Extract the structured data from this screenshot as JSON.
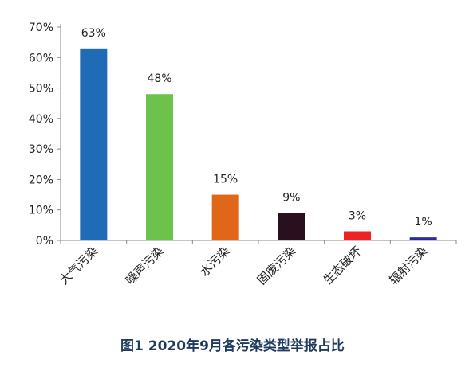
{
  "caption": "图1 2020年9月各污染类型举报占比",
  "chart_data": {
    "type": "bar",
    "title": "",
    "xlabel": "",
    "ylabel": "",
    "categories": [
      "大气污染",
      "噪声污染",
      "水污染",
      "固废污染",
      "生态破坏",
      "辐射污染"
    ],
    "values": [
      63,
      48,
      15,
      9,
      3,
      1
    ],
    "value_labels": [
      "63%",
      "48%",
      "15%",
      "9%",
      "3%",
      "1%"
    ],
    "unit": "%",
    "colors": [
      "#1f6bb5",
      "#6cc24a",
      "#e0661a",
      "#2a0f1e",
      "#ee2222",
      "#2b2a9a"
    ],
    "ylim": [
      0,
      70
    ],
    "yticks": [
      0,
      10,
      20,
      30,
      40,
      50,
      60,
      70
    ],
    "ytick_labels": [
      "0%",
      "10%",
      "20%",
      "30%",
      "40%",
      "50%",
      "60%",
      "70%"
    ],
    "grid": false,
    "legend": false
  }
}
